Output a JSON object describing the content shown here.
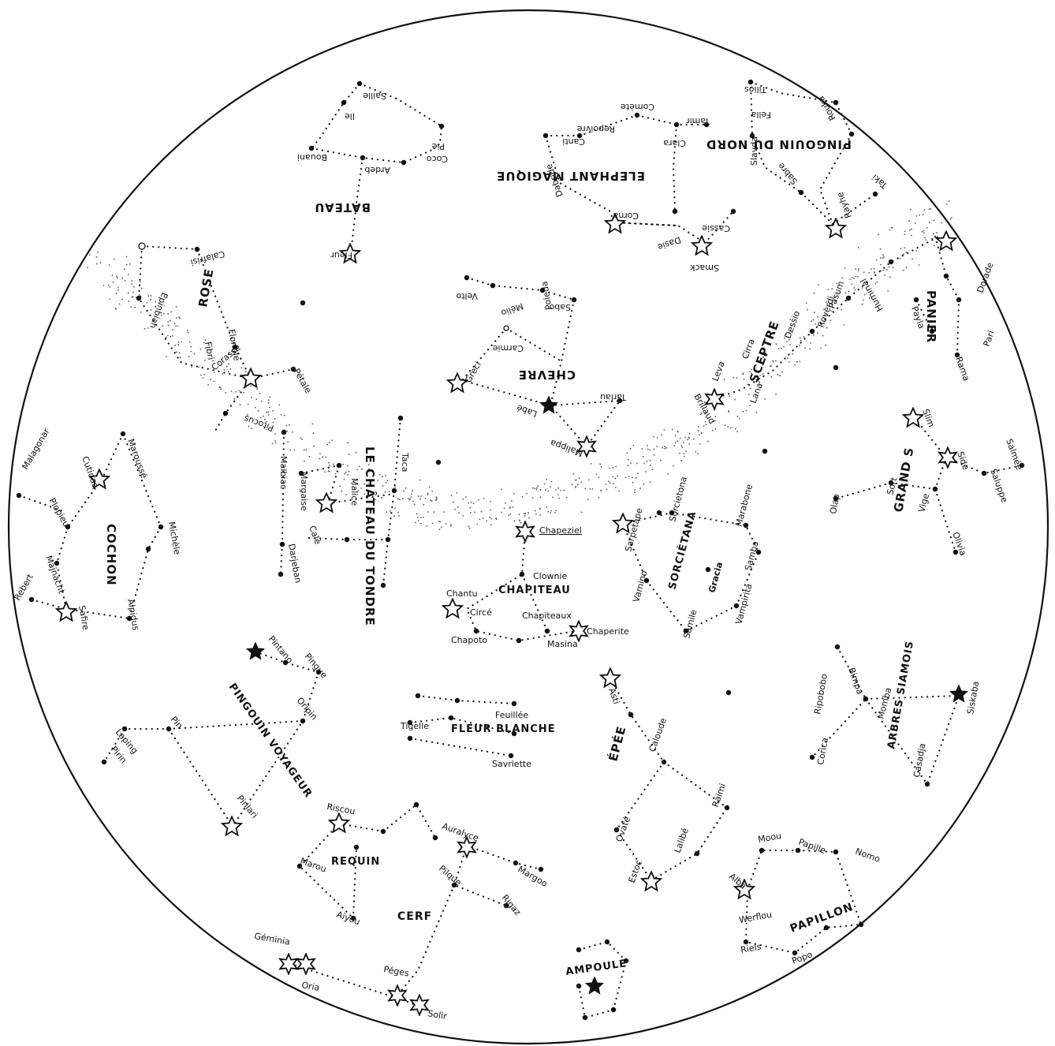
{
  "colors": {
    "ink": "#111111",
    "paper": "#ffffff"
  },
  "constellations": [
    {
      "name": "BATEAU",
      "stars": [
        "Saille",
        "Ile",
        "Coco",
        "Pie",
        "Bouani",
        "Ardeb",
        "Fleur"
      ]
    },
    {
      "name": "ELEPHANT MAGIQUE",
      "stars": [
        "Comète",
        "Tamir",
        "Repoivre",
        "Clara",
        "Canti",
        "Dabride",
        "Corna",
        "Dasie",
        "Cassie",
        "Smack"
      ]
    },
    {
      "name": "PINGOUIN DU NORD",
      "stars": [
        "Tilios",
        "Rouka",
        "Fella",
        "Slavda",
        "Sabre",
        "Taki",
        "Rayhe"
      ]
    },
    {
      "name": "ROSE",
      "stars": [
        "Calafrisi",
        "Epinbian",
        "Florible",
        "Fibri",
        "Corasse",
        "Pétale",
        "Pitocus"
      ]
    },
    {
      "name": "CHEVRE",
      "stars": [
        "Velto",
        "Mélio",
        "Poleda",
        "Sabo",
        "Carmie",
        "Greci",
        "Tarlau",
        "Labé",
        "Malippa"
      ]
    },
    {
      "name": "SCEPTRE",
      "stars": [
        "Pasum",
        "Huminal",
        "Roverdi",
        "Dessio",
        "Cirra",
        "Leva",
        "Lana",
        "Brillaud"
      ]
    },
    {
      "name": "PANIER",
      "stars": [
        "Dorade",
        "Pari",
        "Payla",
        "Rama"
      ]
    },
    {
      "name": "LE CHÂTEAU DU TONDRE",
      "stars": [
        "Taca",
        "Malbiac",
        "Margaise",
        "Malice",
        "Calè",
        "Darjeban"
      ]
    },
    {
      "name": "COCHON",
      "stars": [
        "Maroussé",
        "Cutinas",
        "Malagonar",
        "Plopieu",
        "Michèle",
        "Majnacht",
        "Safire",
        "Alpidus",
        "Rebert"
      ]
    },
    {
      "name": "CHAPITEAU",
      "stars": [
        "Chapeziel",
        "Clownie",
        "Chantu",
        "Circé",
        "Chapiteaux",
        "Chapoto",
        "Masina",
        "Chaperite"
      ]
    },
    {
      "name": "SORCIÈTANA",
      "stars": [
        "Sarpetape",
        "Sorcietona",
        "Marabone",
        "Samba",
        "Vamino",
        "Gracia",
        "Samile",
        "Vampirita"
      ]
    },
    {
      "name": "GRAND S",
      "stars": [
        "Slim",
        "Side",
        "Saluppe",
        "Salmée",
        "Vige",
        "Sort",
        "Olap",
        "Olivia"
      ]
    },
    {
      "name": "PINGOUIN VOYAGEUR",
      "stars": [
        "Pintano",
        "Pingue",
        "Oripin",
        "Pin",
        "Laping",
        "Pirin",
        "Pinlari"
      ]
    },
    {
      "name": "FLEUR BLANCHE",
      "stars": [
        "Tigelle",
        "Feuillée",
        "Savriette"
      ]
    },
    {
      "name": "ÉPÉE",
      "stars": [
        "Asti",
        "Caloude",
        "Raimi",
        "Ovaté",
        "Lalibé",
        "Estoc"
      ]
    },
    {
      "name": "ARBRES SIAMOIS",
      "stars": [
        "Ripobobo",
        "Bimpa",
        "Momba",
        "Siskaba",
        "Corica",
        "Casadja"
      ]
    },
    {
      "name": "REQUIN",
      "stars": [
        "Riscou",
        "Marou",
        "Aiyou"
      ]
    },
    {
      "name": "CERF",
      "stars": [
        "Auralyce",
        "Margoo",
        "Pilque",
        "Rigaz",
        "Péges",
        "Solir",
        "Géminia",
        "Oria"
      ]
    },
    {
      "name": "AMPOULE",
      "stars": []
    },
    {
      "name": "PAPILLON",
      "stars": [
        "Moou",
        "Papille",
        "Nomo",
        "Alba",
        "Werflou",
        "Riels",
        "Popo"
      ]
    }
  ]
}
